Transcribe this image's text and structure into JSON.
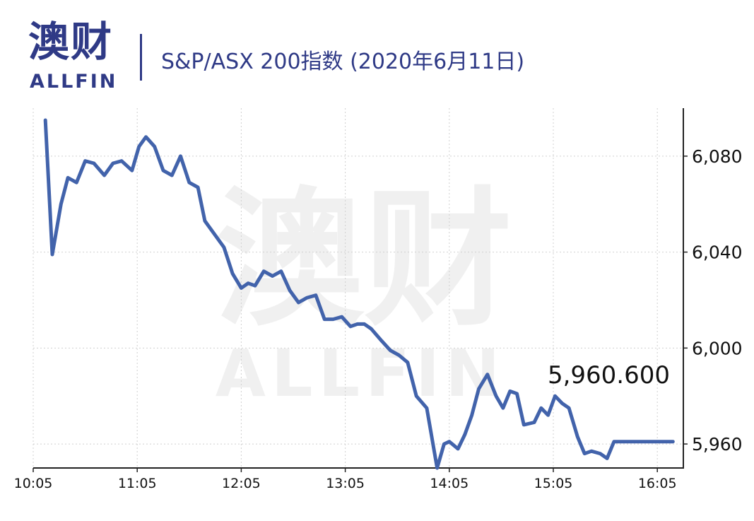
{
  "header": {
    "logo_cn": "澳财",
    "logo_en": "ALLFIN",
    "title": "S&P/ASX 200指数 (2020年6月11日)"
  },
  "watermark": {
    "cn": "澳财",
    "en": "ALLFIN"
  },
  "colors": {
    "line": "#4263ab",
    "brand": "#2f3a86",
    "accent": "#d6336c",
    "grid": "#d0d0d0"
  },
  "chart_data": {
    "type": "line",
    "title": "S&P/ASX 200指数 (2020年6月11日)",
    "xlabel": "",
    "ylabel": "",
    "ylim": [
      5950,
      6100
    ],
    "y_ticks": [
      5960,
      6000,
      6040,
      6080
    ],
    "y_tick_labels": [
      "5,960",
      "6,000",
      "6,040",
      "6,080"
    ],
    "x_ticks": [
      "10:05",
      "11:05",
      "12:05",
      "13:05",
      "14:05",
      "15:05",
      "16:05"
    ],
    "x_range_minutes": [
      605,
      980
    ],
    "grid": true,
    "annotation": "5,960.600",
    "series": [
      {
        "x": [
          "10:12",
          "10:16",
          "10:21",
          "10:25",
          "10:30",
          "10:35",
          "10:40",
          "10:46",
          "10:51",
          "10:56",
          "11:02",
          "11:06",
          "11:10",
          "11:15",
          "11:20",
          "11:25",
          "11:30",
          "11:35",
          "11:40",
          "11:44",
          "11:50",
          "11:55",
          "12:00",
          "12:05",
          "12:09",
          "12:13",
          "12:18",
          "12:23",
          "12:28",
          "12:33",
          "12:38",
          "12:43",
          "12:48",
          "12:53",
          "12:58",
          "13:03",
          "13:08",
          "13:12",
          "13:16",
          "13:20",
          "13:26",
          "13:31",
          "13:36",
          "13:41",
          "13:46",
          "13:52",
          "13:58",
          "14:02",
          "14:05",
          "14:10",
          "14:14",
          "14:18",
          "14:22",
          "14:27",
          "14:32",
          "14:36",
          "14:40",
          "14:44",
          "14:48",
          "14:54",
          "14:58",
          "15:02",
          "15:06",
          "15:10",
          "15:14",
          "15:19",
          "15:23",
          "15:27",
          "15:32",
          "15:36",
          "15:40",
          "15:47",
          "15:52",
          "15:58",
          "16:01",
          "16:05",
          "16:14"
        ],
        "y": [
          6095,
          6039,
          6060,
          6071,
          6069,
          6078,
          6077,
          6072,
          6077,
          6078,
          6074,
          6084,
          6088,
          6084,
          6074,
          6072,
          6080,
          6069,
          6067,
          6053,
          6047,
          6042,
          6031,
          6025,
          6027,
          6026,
          6032,
          6030,
          6032,
          6024,
          6019,
          6021,
          6022,
          6012,
          6012,
          6013,
          6009,
          6010,
          6010,
          6008,
          6003,
          5999,
          5997,
          5994,
          5980,
          5975,
          5950,
          5960,
          5961,
          5958,
          5964,
          5972,
          5983,
          5989,
          5980,
          5975,
          5982,
          5981,
          5968,
          5969,
          5975,
          5972,
          5980,
          5977,
          5975,
          5963,
          5956,
          5957,
          5956,
          5954,
          5961,
          5961,
          5961,
          5961,
          5961,
          5961,
          5961
        ]
      }
    ]
  }
}
